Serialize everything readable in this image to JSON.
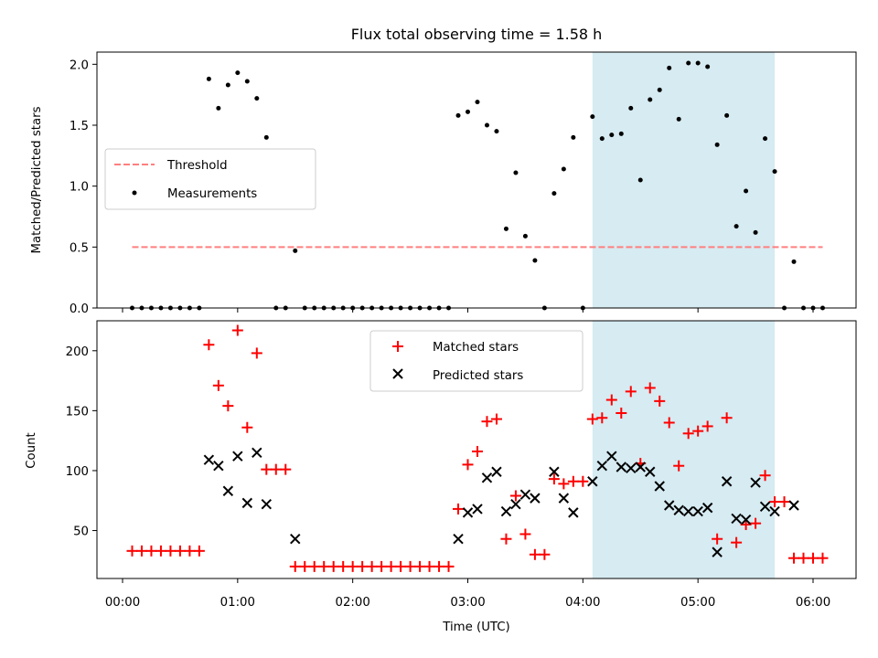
{
  "chart_data": [
    {
      "type": "scatter",
      "title": "Flux total observing time = 1.58 h",
      "xlabel": "",
      "ylabel": "Matched/Predicted stars",
      "xlim": [
        "00:00",
        "06:20"
      ],
      "ylim": [
        0,
        2.1
      ],
      "yticks": [
        "0.0",
        "0.5",
        "1.0",
        "1.5",
        "2.0"
      ],
      "xticks": [
        "00:00",
        "01:00",
        "02:00",
        "03:00",
        "04:00",
        "05:00",
        "06:00"
      ],
      "grid": false,
      "legend_position": "center-left",
      "highlight_span": {
        "start": "04:05",
        "end": "05:40",
        "color": "#add8e6"
      },
      "series": [
        {
          "name": "Threshold",
          "style": "dashed-line",
          "color": "#ff7f7f",
          "x": [
            "00:05",
            "06:05"
          ],
          "y": [
            0.5,
            0.5
          ]
        },
        {
          "name": "Measurements",
          "style": "dot",
          "color": "#000000",
          "x": [
            "00:05",
            "00:10",
            "00:15",
            "00:20",
            "00:25",
            "00:30",
            "00:35",
            "00:40",
            "00:45",
            "00:50",
            "00:55",
            "01:00",
            "01:05",
            "01:10",
            "01:15",
            "01:20",
            "01:25",
            "01:30",
            "01:35",
            "01:40",
            "01:45",
            "01:50",
            "01:55",
            "02:00",
            "02:05",
            "02:10",
            "02:15",
            "02:20",
            "02:25",
            "02:30",
            "02:35",
            "02:40",
            "02:45",
            "02:50",
            "02:55",
            "03:00",
            "03:05",
            "03:10",
            "03:15",
            "03:20",
            "03:25",
            "03:30",
            "03:35",
            "03:40",
            "03:45",
            "03:50",
            "03:55",
            "04:00",
            "04:05",
            "04:10",
            "04:15",
            "04:20",
            "04:25",
            "04:30",
            "04:35",
            "04:40",
            "04:45",
            "04:50",
            "04:55",
            "05:00",
            "05:05",
            "05:10",
            "05:15",
            "05:20",
            "05:25",
            "05:30",
            "05:35",
            "05:40",
            "05:45",
            "05:50",
            "05:55",
            "06:00",
            "06:05"
          ],
          "y": [
            0,
            0,
            0,
            0,
            0,
            0,
            0,
            0,
            1.88,
            1.64,
            1.83,
            1.93,
            1.86,
            1.72,
            1.4,
            0,
            0,
            0.47,
            0,
            0,
            0,
            0,
            0,
            0,
            0,
            0,
            0,
            0,
            0,
            0,
            0,
            0,
            0,
            0,
            1.58,
            1.61,
            1.69,
            1.5,
            1.45,
            0.65,
            1.11,
            0.59,
            0.39,
            0,
            0.94,
            1.14,
            1.4,
            0,
            1.57,
            1.39,
            1.42,
            1.43,
            1.64,
            1.05,
            1.71,
            1.79,
            1.97,
            1.55,
            2.01,
            2.01,
            1.98,
            1.34,
            1.58,
            0.67,
            0.96,
            0.62,
            1.39,
            1.12,
            0,
            0.38,
            0,
            0,
            0
          ]
        }
      ]
    },
    {
      "type": "scatter",
      "title": "",
      "xlabel": "Time (UTC)",
      "ylabel": "Count",
      "xlim": [
        "00:00",
        "06:20"
      ],
      "ylim": [
        10,
        225
      ],
      "yticks": [
        "50",
        "100",
        "150",
        "200"
      ],
      "xticks": [
        "00:00",
        "01:00",
        "02:00",
        "03:00",
        "04:00",
        "05:00",
        "06:00"
      ],
      "grid": false,
      "legend_position": "top-center",
      "highlight_span": {
        "start": "04:05",
        "end": "05:40",
        "color": "#add8e6"
      },
      "series": [
        {
          "name": "Matched stars",
          "marker": "plus",
          "color": "#ff0000",
          "x": [
            "00:05",
            "00:10",
            "00:15",
            "00:20",
            "00:25",
            "00:30",
            "00:35",
            "00:40",
            "00:45",
            "00:50",
            "00:55",
            "01:00",
            "01:05",
            "01:10",
            "01:15",
            "01:20",
            "01:25",
            "01:30",
            "01:35",
            "01:40",
            "01:45",
            "01:50",
            "01:55",
            "02:00",
            "02:05",
            "02:10",
            "02:15",
            "02:20",
            "02:25",
            "02:30",
            "02:35",
            "02:40",
            "02:45",
            "02:50",
            "02:55",
            "03:00",
            "03:05",
            "03:10",
            "03:15",
            "03:20",
            "03:25",
            "03:30",
            "03:35",
            "03:40",
            "03:45",
            "03:50",
            "03:55",
            "04:00",
            "04:05",
            "04:10",
            "04:15",
            "04:20",
            "04:25",
            "04:30",
            "04:35",
            "04:40",
            "04:45",
            "04:50",
            "04:55",
            "05:00",
            "05:05",
            "05:10",
            "05:15",
            "05:20",
            "05:25",
            "05:30",
            "05:35",
            "05:40",
            "05:45",
            "05:50",
            "05:55",
            "06:00",
            "06:05"
          ],
          "y": [
            33,
            33,
            33,
            33,
            33,
            33,
            33,
            33,
            205,
            171,
            154,
            217,
            136,
            198,
            101,
            101,
            101,
            20,
            20,
            20,
            20,
            20,
            20,
            20,
            20,
            20,
            20,
            20,
            20,
            20,
            20,
            20,
            20,
            20,
            68,
            105,
            116,
            141,
            143,
            43,
            79,
            47,
            30,
            30,
            93,
            89,
            91,
            91,
            143,
            144,
            159,
            148,
            166,
            106,
            169,
            158,
            140,
            104,
            131,
            133,
            137,
            43,
            144,
            40,
            55,
            56,
            96,
            74,
            74,
            27,
            27,
            27,
            27
          ]
        },
        {
          "name": "Predicted stars",
          "marker": "x",
          "color": "#000000",
          "x": [
            "00:45",
            "00:50",
            "00:55",
            "01:00",
            "01:05",
            "01:10",
            "01:15",
            "01:30",
            "02:55",
            "03:00",
            "03:05",
            "03:10",
            "03:15",
            "03:20",
            "03:25",
            "03:30",
            "03:35",
            "03:45",
            "03:50",
            "03:55",
            "04:05",
            "04:10",
            "04:15",
            "04:20",
            "04:25",
            "04:30",
            "04:35",
            "04:40",
            "04:45",
            "04:50",
            "04:55",
            "05:00",
            "05:05",
            "05:10",
            "05:15",
            "05:20",
            "05:25",
            "05:30",
            "05:35",
            "05:40",
            "05:50"
          ],
          "y": [
            109,
            104,
            83,
            112,
            73,
            115,
            72,
            43,
            43,
            65,
            68,
            94,
            99,
            66,
            72,
            80,
            77,
            99,
            77,
            65,
            91,
            104,
            112,
            103,
            102,
            103,
            99,
            87,
            71,
            67,
            66,
            66,
            69,
            32,
            91,
            60,
            59,
            90,
            70,
            66,
            71
          ]
        }
      ]
    }
  ]
}
